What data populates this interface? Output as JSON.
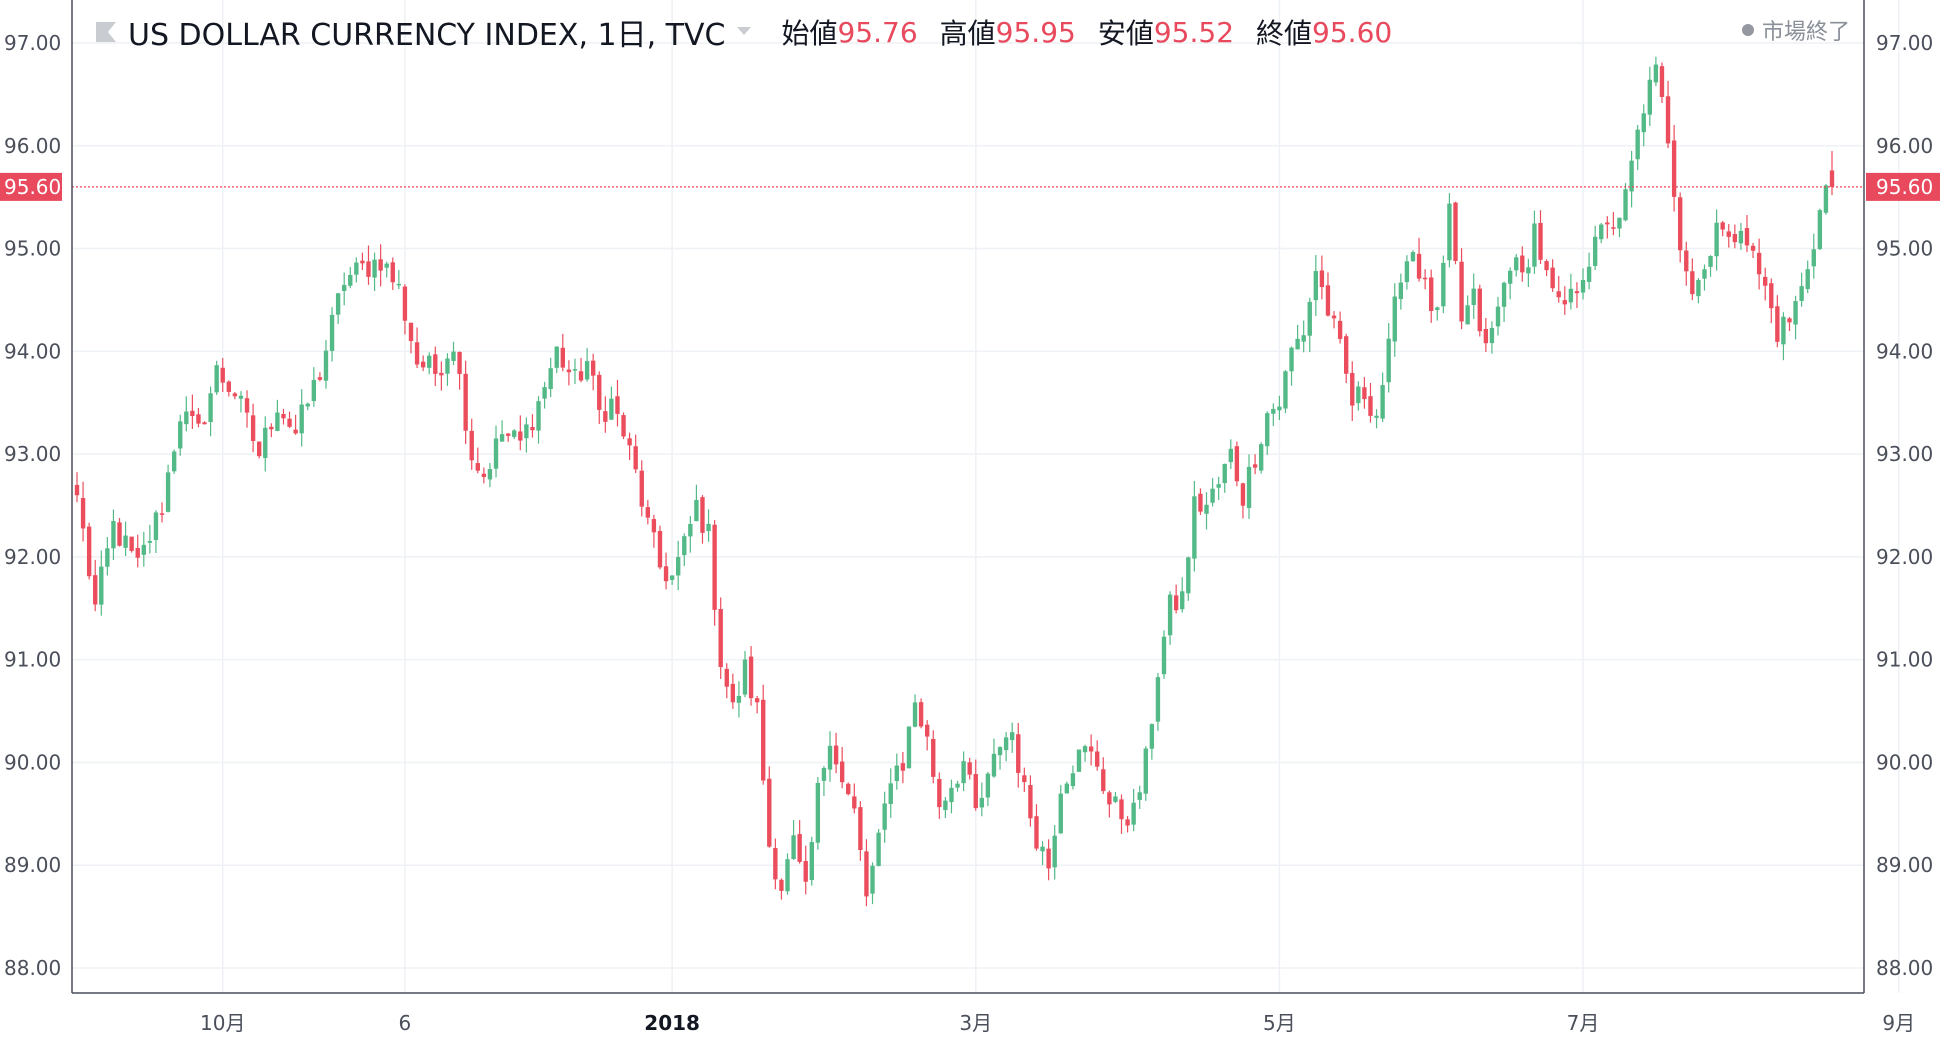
{
  "header": {
    "symbol": "US DOLLAR CURRENCY INDEX, 1日, TVC",
    "open_label": "始値",
    "open_value": "95.76",
    "high_label": "高値",
    "high_value": "95.95",
    "low_label": "安値",
    "low_value": "95.52",
    "close_label": "終値",
    "close_value": "95.60",
    "market_status": "市場終了",
    "flag_icon": "flag-icon",
    "caret_icon": "chevron-down-icon"
  },
  "price_axis": {
    "ticks": [
      "97.00",
      "96.00",
      "95.00",
      "94.00",
      "93.00",
      "92.00",
      "91.00",
      "90.00",
      "89.00",
      "88.00"
    ],
    "last_price_label": "95.60"
  },
  "time_axis": {
    "labels": [
      "10月",
      "6",
      "2018",
      "3月",
      "5月",
      "7月",
      "9月"
    ]
  },
  "colors": {
    "up": "#53b987",
    "down": "#eb4d5c",
    "grid": "#eef1f5",
    "axis": "#4a4f5a",
    "last_price": "#e8495d",
    "header_value": "#e8495d"
  },
  "chart_data": {
    "type": "candlestick",
    "title": "US DOLLAR CURRENCY INDEX, 1日, TVC",
    "ylim": [
      88.0,
      97.25
    ],
    "y_ticks": [
      88.0,
      89.0,
      90.0,
      91.0,
      92.0,
      93.0,
      94.0,
      95.0,
      96.0,
      97.0
    ],
    "x_ticks": [
      {
        "label": "10月",
        "index": 24
      },
      {
        "label": "6",
        "index": 54
      },
      {
        "label": "2018",
        "index": 98
      },
      {
        "label": "3月",
        "index": 148
      },
      {
        "label": "5月",
        "index": 198
      },
      {
        "label": "7月",
        "index": 248
      },
      {
        "label": "9月",
        "index": 300
      }
    ],
    "last_price": 95.6,
    "anchors": [
      [
        0,
        92.6
      ],
      [
        3,
        91.5
      ],
      [
        6,
        92.3
      ],
      [
        10,
        91.9
      ],
      [
        14,
        92.5
      ],
      [
        17,
        93.4
      ],
      [
        20,
        93.2
      ],
      [
        23,
        93.8
      ],
      [
        26,
        93.6
      ],
      [
        30,
        93.0
      ],
      [
        33,
        93.5
      ],
      [
        36,
        93.2
      ],
      [
        40,
        93.8
      ],
      [
        44,
        94.7
      ],
      [
        47,
        94.8
      ],
      [
        50,
        94.9
      ],
      [
        53,
        94.6
      ],
      [
        56,
        93.9
      ],
      [
        59,
        93.8
      ],
      [
        62,
        94.1
      ],
      [
        65,
        93.0
      ],
      [
        67,
        92.8
      ],
      [
        70,
        93.2
      ],
      [
        73,
        93.1
      ],
      [
        76,
        93.5
      ],
      [
        79,
        94.0
      ],
      [
        82,
        93.7
      ],
      [
        84,
        93.9
      ],
      [
        86,
        93.4
      ],
      [
        88,
        93.5
      ],
      [
        90,
        93.2
      ],
      [
        92,
        92.8
      ],
      [
        94,
        92.3
      ],
      [
        96,
        91.9
      ],
      [
        98,
        91.8
      ],
      [
        100,
        92.1
      ],
      [
        102,
        92.5
      ],
      [
        104,
        92.2
      ],
      [
        106,
        91.0
      ],
      [
        108,
        90.5
      ],
      [
        110,
        90.9
      ],
      [
        112,
        90.5
      ],
      [
        114,
        89.2
      ],
      [
        116,
        88.8
      ],
      [
        118,
        89.2
      ],
      [
        120,
        88.7
      ],
      [
        122,
        89.7
      ],
      [
        124,
        90.3
      ],
      [
        126,
        89.8
      ],
      [
        128,
        89.5
      ],
      [
        130,
        88.7
      ],
      [
        132,
        89.2
      ],
      [
        134,
        89.9
      ],
      [
        136,
        90.0
      ],
      [
        138,
        90.6
      ],
      [
        140,
        90.2
      ],
      [
        142,
        89.6
      ],
      [
        144,
        89.8
      ],
      [
        146,
        90.0
      ],
      [
        148,
        89.5
      ],
      [
        150,
        89.8
      ],
      [
        152,
        90.2
      ],
      [
        154,
        90.3
      ],
      [
        156,
        89.7
      ],
      [
        158,
        89.3
      ],
      [
        160,
        89.0
      ],
      [
        162,
        89.8
      ],
      [
        164,
        90.0
      ],
      [
        166,
        90.1
      ],
      [
        168,
        90.0
      ],
      [
        170,
        89.6
      ],
      [
        172,
        89.5
      ],
      [
        174,
        89.5
      ],
      [
        176,
        90.0
      ],
      [
        178,
        90.9
      ],
      [
        180,
        91.5
      ],
      [
        182,
        91.6
      ],
      [
        184,
        92.5
      ],
      [
        186,
        92.5
      ],
      [
        188,
        92.7
      ],
      [
        190,
        93.0
      ],
      [
        192,
        92.6
      ],
      [
        194,
        93.0
      ],
      [
        196,
        93.4
      ],
      [
        198,
        93.5
      ],
      [
        200,
        94.0
      ],
      [
        202,
        94.2
      ],
      [
        204,
        94.8
      ],
      [
        206,
        94.4
      ],
      [
        208,
        94.0
      ],
      [
        210,
        93.5
      ],
      [
        212,
        93.6
      ],
      [
        214,
        93.4
      ],
      [
        216,
        94.0
      ],
      [
        218,
        94.8
      ],
      [
        220,
        95.0
      ],
      [
        222,
        94.6
      ],
      [
        224,
        94.3
      ],
      [
        226,
        95.3
      ],
      [
        228,
        94.3
      ],
      [
        230,
        94.5
      ],
      [
        232,
        94.0
      ],
      [
        234,
        94.4
      ],
      [
        236,
        94.9
      ],
      [
        238,
        94.7
      ],
      [
        240,
        95.2
      ],
      [
        242,
        94.7
      ],
      [
        244,
        94.4
      ],
      [
        246,
        94.5
      ],
      [
        248,
        94.8
      ],
      [
        250,
        95.0
      ],
      [
        252,
        95.3
      ],
      [
        254,
        95.2
      ],
      [
        256,
        95.8
      ],
      [
        258,
        96.4
      ],
      [
        260,
        96.7
      ],
      [
        262,
        96.1
      ],
      [
        264,
        95.1
      ],
      [
        266,
        94.6
      ],
      [
        268,
        94.8
      ],
      [
        270,
        95.3
      ],
      [
        272,
        95.0
      ],
      [
        274,
        95.3
      ],
      [
        276,
        94.9
      ],
      [
        278,
        94.6
      ],
      [
        280,
        94.2
      ],
      [
        282,
        94.3
      ],
      [
        284,
        94.6
      ],
      [
        286,
        95.1
      ],
      [
        288,
        95.6
      ],
      [
        289,
        95.6
      ]
    ],
    "candles_count": 290
  }
}
